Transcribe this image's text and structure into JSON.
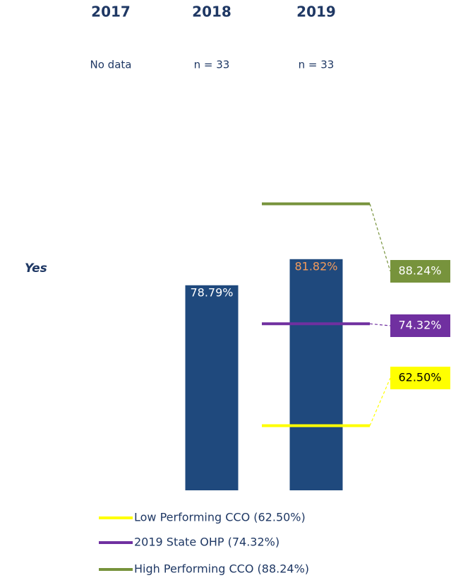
{
  "chart_data": {
    "type": "bar",
    "categories": [
      "2017",
      "2018",
      "2019"
    ],
    "sample_notes": [
      "No data",
      "n = 33",
      "n = 33"
    ],
    "row_label": "Yes",
    "values": [
      null,
      78.79,
      81.82
    ],
    "value_labels": [
      null,
      "78.79%",
      "81.82%"
    ],
    "value_label_colors": [
      null,
      "#ffffff",
      "#f39b5b"
    ],
    "color": "#1f497d",
    "ylim": [
      55,
      90
    ],
    "reference_lines": [
      {
        "name": "Low Performing CCO (62.50%)",
        "color": "#ffff00",
        "value": 62.5,
        "value_label": "62.50%",
        "text_color": "#000000"
      },
      {
        "name": "2019 State OHP (74.32%)",
        "color": "#7030a0",
        "value": 74.32,
        "value_label": "74.32%",
        "text_color": "#ffffff"
      },
      {
        "name": "High Performing CCO (88.24%)",
        "color": "#77933c",
        "value": 88.24,
        "value_label": "88.24%",
        "text_color": "#ffffff"
      }
    ]
  }
}
